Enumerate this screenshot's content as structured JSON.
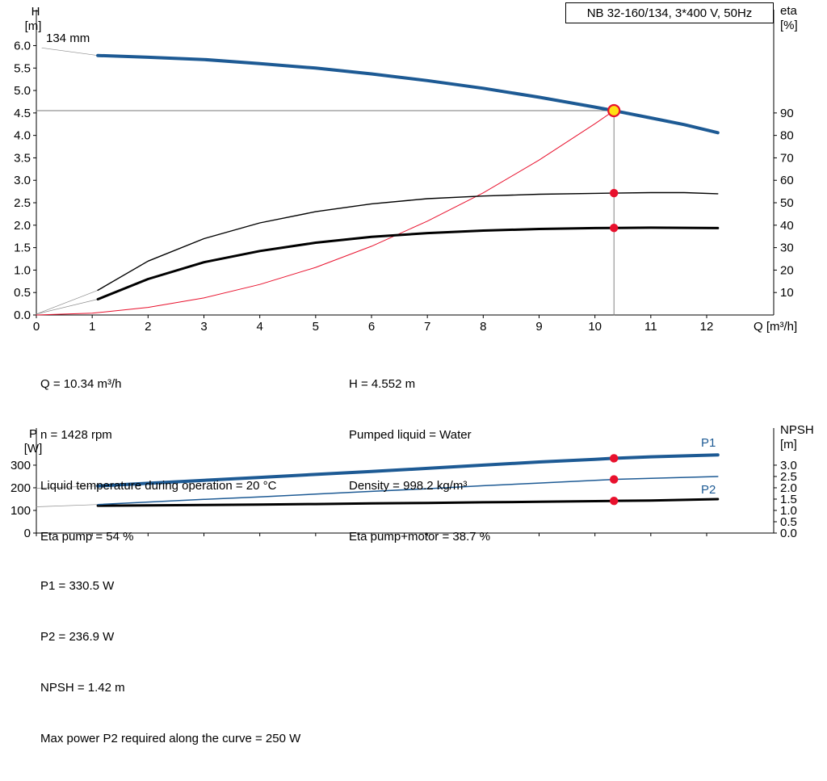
{
  "title_box": "NB 32-160/134, 3*400 V, 50Hz",
  "impeller_label": "134 mm",
  "axes_top": {
    "left_title": "H",
    "left_unit": "[m]",
    "right_title": "eta",
    "right_unit": "[%]",
    "x_label": "Q [m³/h]"
  },
  "axes_bottom": {
    "left_title": "P",
    "left_unit": "[W]",
    "right_title": "NPSH",
    "right_unit": "[m]",
    "p1_label": "P1",
    "p2_label": "P2"
  },
  "info_top_col1": [
    "Q = 10.34 m³/h",
    "n = 1428 rpm",
    "Liquid temperature during operation = 20 °C",
    "Eta pump = 54 %"
  ],
  "info_top_col2": [
    "H = 4.552 m",
    "Pumped liquid = Water",
    "Density = 998.2 kg/m³",
    "Eta pump+motor = 38.7 %"
  ],
  "info_bottom": [
    "P1 = 330.5 W",
    "P2 = 236.9 W",
    "NPSH = 1.42 m",
    "Max power P2 required along the curve = 250 W"
  ],
  "colors": {
    "curve_blue": "#1d5a94",
    "curve_red": "#e8112d",
    "duty_yellow": "#ffe014",
    "connector_gray": "#8c8c8c",
    "black": "#000000"
  },
  "chart_data": [
    {
      "type": "line",
      "title": "NB 32-160/134, 3*400 V, 50Hz",
      "xlabel": "Q [m³/h]",
      "ylabel_left": "H [m]",
      "ylabel_right": "eta [%]",
      "xlim": [
        0,
        13.2
      ],
      "ylim_left": [
        0,
        6.8
      ],
      "right_axis_factor": 0.05,
      "x_tick_values": [
        0,
        1,
        2,
        3,
        4,
        5,
        6,
        7,
        8,
        9,
        10,
        11,
        12
      ],
      "x_tick_labels": [
        "0",
        "1",
        "2",
        "3",
        "4",
        "5",
        "6",
        "7",
        "8",
        "9",
        "10",
        "11",
        "12"
      ],
      "y_tick_labels_left": [
        "0.0",
        "0.5",
        "1.0",
        "1.5",
        "2.0",
        "2.5",
        "3.0",
        "3.5",
        "4.0",
        "4.5",
        "5.0",
        "5.5",
        "6.0"
      ],
      "y_tick_labels_right": [
        "10",
        "20",
        "30",
        "40",
        "50",
        "60",
        "70",
        "80",
        "90"
      ],
      "operating_point": {
        "Q": 10.34,
        "H": 4.552,
        "eta_pump": 54,
        "eta_pump_motor": 38.7
      },
      "series": [
        {
          "name": "impeller-connector",
          "axis": "left",
          "color": "#8c8c8c",
          "width": 0.7,
          "points": [
            [
              0.1,
              5.95
            ],
            [
              1.1,
              5.78
            ]
          ]
        },
        {
          "name": "eta-pump-connector",
          "axis": "left",
          "color": "#8c8c8c",
          "width": 0.7,
          "points": [
            [
              0,
              0.02
            ],
            [
              1.1,
              0.55
            ]
          ]
        },
        {
          "name": "eta-pump-motor-connector",
          "axis": "left",
          "color": "#8c8c8c",
          "width": 0.7,
          "points": [
            [
              0,
              0.02
            ],
            [
              1.1,
              0.35
            ]
          ]
        },
        {
          "name": "duty-vertical-line",
          "axis": "left",
          "color": "#777777",
          "width": 0.9,
          "points": [
            [
              10.34,
              0
            ],
            [
              10.34,
              4.552
            ]
          ]
        },
        {
          "name": "duty-horizontal-line",
          "axis": "left",
          "color": "#777777",
          "width": 0.9,
          "points": [
            [
              0,
              4.552
            ],
            [
              10.34,
              4.552
            ]
          ]
        },
        {
          "name": "system-curve",
          "axis": "left",
          "color": "#e8112d",
          "width": 1,
          "points": [
            [
              0,
              0
            ],
            [
              1,
              0.04
            ],
            [
              2,
              0.17
            ],
            [
              3,
              0.38
            ],
            [
              4,
              0.68
            ],
            [
              5,
              1.06
            ],
            [
              6,
              1.53
            ],
            [
              7,
              2.09
            ],
            [
              8,
              2.72
            ],
            [
              9,
              3.45
            ],
            [
              10,
              4.26
            ],
            [
              10.34,
              4.552
            ]
          ]
        },
        {
          "name": "eta-pump-curve",
          "axis": "right",
          "color": "#000000",
          "width": 1.4,
          "points": [
            [
              1.1,
              11
            ],
            [
              2,
              24
            ],
            [
              3,
              34
            ],
            [
              4,
              41
            ],
            [
              5,
              46
            ],
            [
              6,
              49.5
            ],
            [
              7,
              51.8
            ],
            [
              8,
              53
            ],
            [
              9,
              53.8
            ],
            [
              10,
              54.2
            ],
            [
              10.34,
              54.3
            ],
            [
              11,
              54.5
            ],
            [
              11.6,
              54.5
            ],
            [
              12.2,
              54
            ]
          ]
        },
        {
          "name": "eta-pump-motor-curve",
          "axis": "right",
          "color": "#000000",
          "width": 3,
          "points": [
            [
              1.1,
              7
            ],
            [
              2,
              16
            ],
            [
              3,
              23.5
            ],
            [
              4,
              28.5
            ],
            [
              5,
              32.2
            ],
            [
              6,
              34.8
            ],
            [
              7,
              36.5
            ],
            [
              8,
              37.6
            ],
            [
              9,
              38.3
            ],
            [
              10,
              38.7
            ],
            [
              10.34,
              38.8
            ],
            [
              11,
              38.9
            ],
            [
              12.2,
              38.7
            ]
          ]
        },
        {
          "name": "qh-curve-134mm",
          "axis": "left",
          "color": "#1d5a94",
          "width": 4,
          "points": [
            [
              1.1,
              5.78
            ],
            [
              2,
              5.74
            ],
            [
              3,
              5.69
            ],
            [
              4,
              5.6
            ],
            [
              5,
              5.5
            ],
            [
              6,
              5.37
            ],
            [
              7,
              5.22
            ],
            [
              8,
              5.05
            ],
            [
              9,
              4.85
            ],
            [
              10,
              4.63
            ],
            [
              10.34,
              4.552
            ],
            [
              11,
              4.39
            ],
            [
              11.6,
              4.24
            ],
            [
              12.2,
              4.06
            ]
          ]
        }
      ],
      "markers": [
        {
          "name": "duty-point",
          "x": 10.34,
          "y": 4.552,
          "axis": "left",
          "r": 7,
          "fill": "#ffe014",
          "stroke": "#e8112d",
          "stroke_width": 2.2
        },
        {
          "name": "eta-pump-point",
          "x": 10.34,
          "y": 54.3,
          "axis": "right",
          "r": 5.2,
          "fill": "#e8112d"
        },
        {
          "name": "eta-pump-motor-point",
          "x": 10.34,
          "y": 38.8,
          "axis": "right",
          "r": 5.2,
          "fill": "#e8112d"
        }
      ]
    },
    {
      "type": "line",
      "title": "",
      "xlabel": "",
      "ylabel_left": "P [W]",
      "ylabel_right": "NPSH [m]",
      "xlim": [
        0,
        13.2
      ],
      "ylim_left": [
        0,
        464
      ],
      "right_axis_factor": 100,
      "x_tick_values": [
        0,
        1,
        2,
        3,
        4,
        5,
        6,
        7,
        8,
        9,
        10,
        11,
        12
      ],
      "x_tick_labels": [],
      "y_tick_labels_left": [
        "0",
        "100",
        "200",
        "300"
      ],
      "y_tick_labels_right": [
        "0.0",
        "0.5",
        "1.0",
        "1.5",
        "2.0",
        "2.5",
        "3.0"
      ],
      "operating_point": {
        "Q": 10.34,
        "P1": 330.5,
        "P2": 236.9,
        "NPSH": 1.42
      },
      "series": [
        {
          "name": "p1-connector",
          "axis": "left",
          "color": "#8c8c8c",
          "width": 0.7,
          "points": [
            [
              0,
              198
            ],
            [
              1.1,
              208
            ]
          ]
        },
        {
          "name": "p2-connector",
          "axis": "left",
          "color": "#8c8c8c",
          "width": 0.7,
          "points": [
            [
              0,
              116
            ],
            [
              1.1,
              126
            ]
          ]
        },
        {
          "name": "npsh-curve",
          "axis": "right",
          "color": "#000000",
          "width": 3,
          "points": [
            [
              1.1,
              1.21
            ],
            [
              2,
              1.22
            ],
            [
              3,
              1.24
            ],
            [
              4,
              1.26
            ],
            [
              5,
              1.28
            ],
            [
              6,
              1.31
            ],
            [
              7,
              1.33
            ],
            [
              8,
              1.36
            ],
            [
              9,
              1.38
            ],
            [
              10,
              1.41
            ],
            [
              10.34,
              1.42
            ],
            [
              11,
              1.44
            ],
            [
              12.2,
              1.5
            ]
          ]
        },
        {
          "name": "p2-curve",
          "axis": "left",
          "color": "#1d5a94",
          "width": 1.5,
          "points": [
            [
              1.1,
              126
            ],
            [
              2,
              137
            ],
            [
              3,
              149
            ],
            [
              4,
              160
            ],
            [
              5,
              172
            ],
            [
              6,
              184
            ],
            [
              7,
              196
            ],
            [
              8,
              209
            ],
            [
              9,
              221
            ],
            [
              10,
              233
            ],
            [
              10.34,
              236.9
            ],
            [
              11,
              242
            ],
            [
              12.2,
              250
            ]
          ]
        },
        {
          "name": "p1-curve",
          "axis": "left",
          "color": "#1d5a94",
          "width": 4,
          "points": [
            [
              1.1,
              208
            ],
            [
              2,
              220
            ],
            [
              3,
              233
            ],
            [
              4,
              246
            ],
            [
              5,
              259
            ],
            [
              6,
              272
            ],
            [
              7,
              286
            ],
            [
              8,
              300
            ],
            [
              9,
              314
            ],
            [
              10,
              326
            ],
            [
              10.34,
              330.5
            ],
            [
              11,
              337
            ],
            [
              12.2,
              345
            ]
          ]
        }
      ],
      "markers": [
        {
          "name": "p1-point",
          "x": 10.34,
          "y": 330.5,
          "axis": "left",
          "r": 5.2,
          "fill": "#e8112d"
        },
        {
          "name": "p2-point",
          "x": 10.34,
          "y": 236.9,
          "axis": "left",
          "r": 5.2,
          "fill": "#e8112d"
        },
        {
          "name": "npsh-point",
          "x": 10.34,
          "y": 1.42,
          "axis": "right",
          "r": 5.2,
          "fill": "#e8112d"
        }
      ]
    }
  ]
}
